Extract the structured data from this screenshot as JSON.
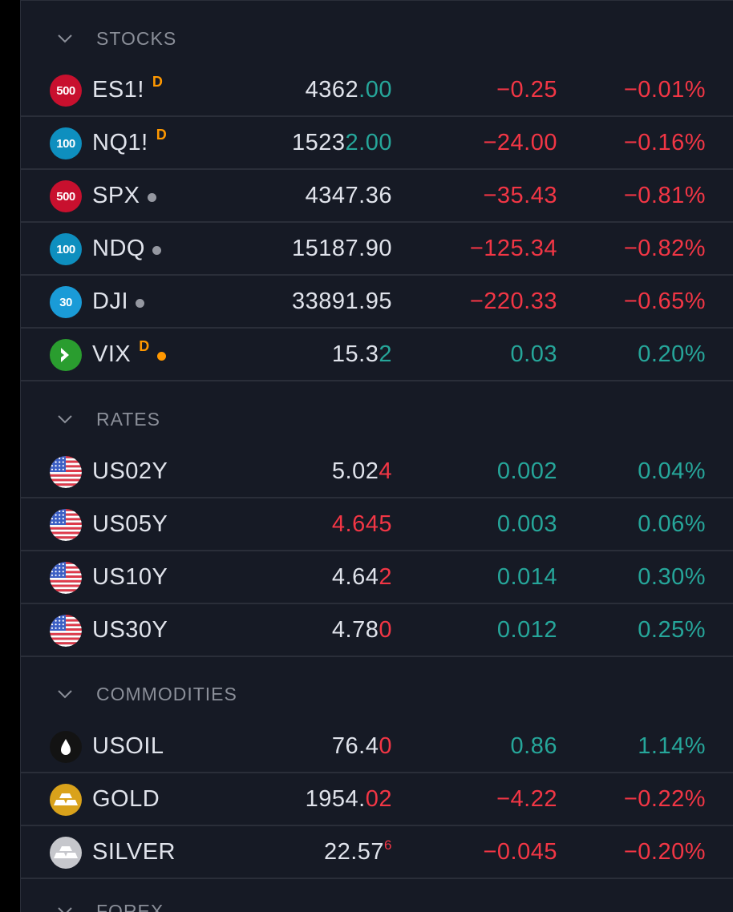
{
  "colors": {
    "up": "#26a69a",
    "down": "#f23645",
    "badge_d": "#ff9800",
    "background": "#161a25"
  },
  "sections": [
    {
      "title": "STOCKS",
      "rows": [
        {
          "logo": "500",
          "logo_bg": "#c8102e",
          "symbol": "ES1!",
          "flag": "D",
          "dot": null,
          "last_main": "4362",
          "last_tail": ".00",
          "last_tail_dir": "up",
          "last_sup": "",
          "change": "−0.25",
          "change_pct": "−0.01%",
          "dir": "down"
        },
        {
          "logo": "100",
          "logo_bg": "#0e8fbf",
          "symbol": "NQ1!",
          "flag": "D",
          "dot": null,
          "last_main": "1523",
          "last_tail": "2.00",
          "last_tail_dir": "up",
          "last_sup": "",
          "change": "−24.00",
          "change_pct": "−0.16%",
          "dir": "down"
        },
        {
          "logo": "500",
          "logo_bg": "#c8102e",
          "symbol": "SPX",
          "flag": "",
          "dot": "grey",
          "last_main": "4347.36",
          "last_tail": "",
          "last_tail_dir": "neutral",
          "last_sup": "",
          "change": "−35.43",
          "change_pct": "−0.81%",
          "dir": "down"
        },
        {
          "logo": "100",
          "logo_bg": "#0e8fbf",
          "symbol": "NDQ",
          "flag": "",
          "dot": "grey",
          "last_main": "15187.90",
          "last_tail": "",
          "last_tail_dir": "neutral",
          "last_sup": "",
          "change": "−125.34",
          "change_pct": "−0.82%",
          "dir": "down"
        },
        {
          "logo": "30",
          "logo_bg": "#1a9bd7",
          "symbol": "DJI",
          "flag": "",
          "dot": "grey",
          "last_main": "33891.95",
          "last_tail": "",
          "last_tail_dir": "neutral",
          "last_sup": "",
          "change": "−220.33",
          "change_pct": "−0.65%",
          "dir": "down"
        },
        {
          "logo": "vix-icon",
          "logo_bg": "#2a9d2f",
          "symbol": "VIX",
          "flag": "D",
          "dot": "orange",
          "last_main": "15.3",
          "last_tail": "2",
          "last_tail_dir": "up",
          "last_sup": "",
          "change": "0.03",
          "change_pct": "0.20%",
          "dir": "up"
        }
      ]
    },
    {
      "title": "RATES",
      "rows": [
        {
          "logo": "us-flag-icon",
          "symbol": "US02Y",
          "flag": "",
          "dot": null,
          "last_main": "5.02",
          "last_tail": "4",
          "last_tail_dir": "down",
          "last_sup": "",
          "change": "0.002",
          "change_pct": "0.04%",
          "dir": "up"
        },
        {
          "logo": "us-flag-icon",
          "symbol": "US05Y",
          "flag": "",
          "dot": null,
          "last_main": "",
          "last_tail": "4.645",
          "last_tail_dir": "down",
          "last_sup": "",
          "change": "0.003",
          "change_pct": "0.06%",
          "dir": "up"
        },
        {
          "logo": "us-flag-icon",
          "symbol": "US10Y",
          "flag": "",
          "dot": null,
          "last_main": "4.64",
          "last_tail": "2",
          "last_tail_dir": "down",
          "last_sup": "",
          "change": "0.014",
          "change_pct": "0.30%",
          "dir": "up"
        },
        {
          "logo": "us-flag-icon",
          "symbol": "US30Y",
          "flag": "",
          "dot": null,
          "last_main": "4.78",
          "last_tail": "0",
          "last_tail_dir": "down",
          "last_sup": "",
          "change": "0.012",
          "change_pct": "0.25%",
          "dir": "up"
        }
      ]
    },
    {
      "title": "COMMODITIES",
      "rows": [
        {
          "logo": "oil-drop-icon",
          "logo_bg": "#131313",
          "symbol": "USOIL",
          "flag": "",
          "dot": null,
          "last_main": "76.4",
          "last_tail": "0",
          "last_tail_dir": "down",
          "last_sup": "",
          "change": "0.86",
          "change_pct": "1.14%",
          "dir": "up"
        },
        {
          "logo": "gold-bars-icon",
          "logo_bg": "#d9a21b",
          "symbol": "GOLD",
          "flag": "",
          "dot": null,
          "last_main": "1954.",
          "last_tail": "02",
          "last_tail_dir": "down",
          "last_sup": "",
          "change": "−4.22",
          "change_pct": "−0.22%",
          "dir": "down"
        },
        {
          "logo": "silver-bars-icon",
          "logo_bg": "#c6c7cc",
          "symbol": "SILVER",
          "flag": "",
          "dot": null,
          "last_main": "22.57",
          "last_tail": "",
          "last_tail_dir": "down",
          "last_sup": "6",
          "change": "−0.045",
          "change_pct": "−0.20%",
          "dir": "down"
        }
      ]
    },
    {
      "title": "FOREX",
      "rows": []
    }
  ]
}
